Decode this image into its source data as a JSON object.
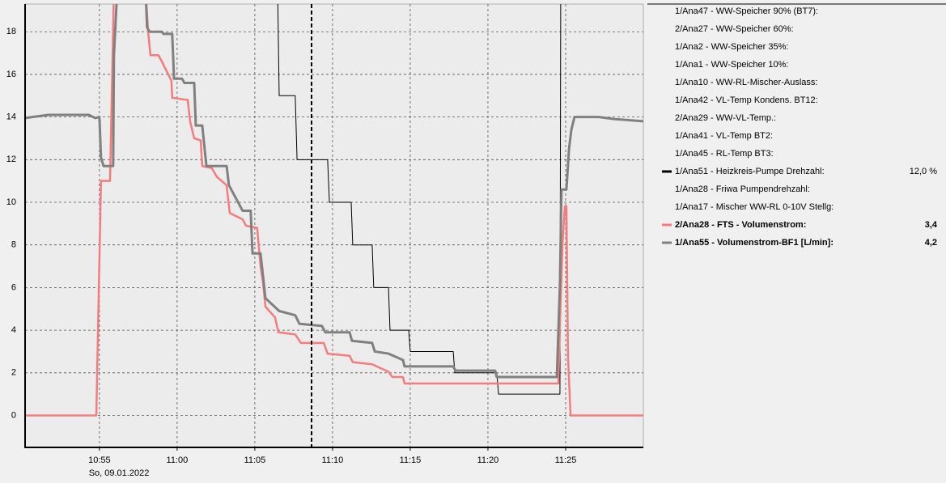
{
  "chart_data": {
    "type": "line",
    "date_label": "So, 09.01.2022",
    "xlim": [
      "10:50:13",
      "11:30:00"
    ],
    "xticks": [
      "10:55",
      "11:00",
      "11:05",
      "11:10",
      "11:15",
      "11:20",
      "11:25"
    ],
    "ylim": [
      -1.5,
      19.3
    ],
    "yticks": [
      0,
      2,
      4,
      6,
      8,
      10,
      12,
      14,
      16,
      18
    ],
    "grid": true,
    "series": [
      {
        "name": "1/Ana47 - WW-Speicher 90% (BT7):"
      },
      {
        "name": "2/Ana27 - WW-Speicher 60%:"
      },
      {
        "name": "1/Ana2 - WW-Speicher 35%:"
      },
      {
        "name": "1/Ana1 - WW-Speicher 10%:"
      },
      {
        "name": "1/Ana10 - WW-RL-Mischer-Auslass:"
      },
      {
        "name": "1/Ana42 - VL-Temp Kondens. BT12:"
      },
      {
        "name": "2/Ana29 - WW-VL-Temp.:"
      },
      {
        "name": "1/Ana41 - VL-Temp BT2:"
      },
      {
        "name": "1/Ana45 - RL-Temp BT3:"
      },
      {
        "name": "1/Ana51 - Heizkreis-Pumpe Drehzahl:",
        "readout": "12,0 %",
        "color": "#000000",
        "width": 1,
        "bold": false,
        "x": [
          "11:06:28",
          "11:06:34",
          "11:07:36",
          "11:07:43",
          "11:09:41",
          "11:09:48",
          "11:11:12",
          "11:11:18",
          "11:12:33",
          "11:12:39",
          "11:13:36",
          "11:13:42",
          "11:14:54",
          "11:15:00",
          "11:17:46",
          "11:17:52",
          "11:20:34",
          "11:20:41",
          "11:24:38",
          "11:24:41"
        ],
        "values": [
          20,
          15.0,
          15.0,
          12.0,
          12.0,
          10.0,
          10.0,
          8.0,
          8.0,
          6.0,
          6.0,
          4.0,
          4.0,
          3.0,
          3.0,
          2.0,
          2.0,
          1.0,
          1.0,
          20
        ]
      },
      {
        "name": "1/Ana28 - Friwa Pumpendrehzahl:"
      },
      {
        "name": "1/Ana17 - Mischer WW-RL 0-10V Stellg:"
      },
      {
        "name": "2/Ana28 - FTS - Volumenstrom:",
        "readout": "3,4",
        "color": "#f47c7c",
        "width": 2.5,
        "bold": true,
        "x": [
          "10:50:13",
          "10:54:48",
          "10:55:06",
          "10:55:41",
          "10:55:56",
          "10:57:58",
          "10:58:08",
          "10:58:17",
          "10:58:48",
          "10:59:01",
          "10:59:38",
          "10:59:41",
          "11:00:41",
          "11:00:50",
          "11:01:06",
          "11:01:31",
          "11:01:37",
          "11:02:14",
          "11:02:33",
          "11:03:11",
          "11:03:23",
          "11:04:13",
          "11:04:26",
          "11:05:09",
          "11:05:22",
          "11:05:31",
          "11:05:41",
          "11:06:18",
          "11:06:31",
          "11:07:36",
          "11:07:58",
          "11:09:26",
          "11:09:41",
          "11:11:06",
          "11:11:18",
          "11:12:33",
          "11:13:36",
          "11:13:51",
          "11:14:32",
          "11:14:38",
          "11:24:32",
          "11:24:38",
          "11:24:48",
          "11:24:57",
          "11:25:03",
          "11:25:09",
          "11:25:19",
          "11:30:00"
        ],
        "values": [
          0,
          0,
          11,
          11,
          20,
          20,
          18.0,
          16.9,
          16.9,
          16.6,
          15.7,
          14.9,
          14.8,
          13.8,
          13.0,
          12.9,
          11.7,
          11.6,
          11.2,
          10.8,
          9.5,
          9.2,
          8.9,
          8.8,
          7.0,
          6.3,
          5.1,
          4.6,
          3.9,
          3.8,
          3.4,
          3.4,
          2.9,
          2.8,
          2.5,
          2.4,
          2.05,
          1.8,
          1.8,
          1.5,
          1.5,
          4.3,
          8.1,
          9.8,
          9.8,
          2.8,
          0,
          0
        ]
      },
      {
        "name": "1/Ana55 - Volumenstrom-BF1 [L/min]:",
        "readout": "4,2",
        "color": "#808080",
        "width": 3,
        "bold": true,
        "x": [
          "10:50:13",
          "10:50:41",
          "10:51:43",
          "10:54:19",
          "10:54:44",
          "10:55:00",
          "10:55:06",
          "10:55:16",
          "10:55:53",
          "10:55:56",
          "10:56:09",
          "10:57:58",
          "10:58:04",
          "10:58:14",
          "10:59:01",
          "10:59:07",
          "10:59:41",
          "10:59:48",
          "11:00:19",
          "11:00:28",
          "11:01:06",
          "11:01:12",
          "11:01:37",
          "11:01:53",
          "11:03:11",
          "11:03:20",
          "11:04:13",
          "11:04:44",
          "11:04:51",
          "11:05:22",
          "11:05:31",
          "11:05:41",
          "11:06:34",
          "11:07:36",
          "11:07:52",
          "11:09:19",
          "11:09:32",
          "11:11:06",
          "11:11:15",
          "11:12:33",
          "11:12:43",
          "11:13:36",
          "11:14:32",
          "11:14:38",
          "11:17:46",
          "11:17:55",
          "11:20:28",
          "11:20:34",
          "11:24:26",
          "11:24:38",
          "11:24:44",
          "11:25:03",
          "11:25:13",
          "11:25:22",
          "11:25:34",
          "11:27:08",
          "11:28:11",
          "11:30:00"
        ],
        "values": [
          13.95,
          14.0,
          14.1,
          14.1,
          13.95,
          14.0,
          12.1,
          11.7,
          11.7,
          16.9,
          20,
          20,
          18.2,
          18.0,
          18.0,
          17.9,
          17.9,
          15.8,
          15.8,
          15.6,
          15.6,
          13.6,
          13.6,
          11.7,
          11.7,
          10.8,
          9.6,
          9.6,
          7.6,
          7.6,
          6.6,
          5.5,
          4.9,
          4.7,
          4.3,
          4.2,
          3.9,
          3.9,
          3.5,
          3.4,
          3.0,
          2.9,
          2.6,
          2.3,
          2.3,
          2.1,
          2.1,
          1.8,
          1.8,
          6.2,
          10.6,
          10.6,
          12.5,
          13.4,
          14.0,
          14.0,
          13.9,
          13.8
        ]
      }
    ]
  }
}
